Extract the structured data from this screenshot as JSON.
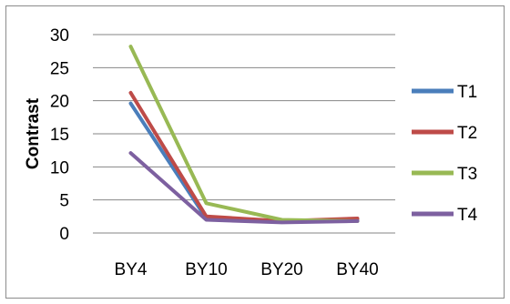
{
  "chart_data": {
    "type": "line",
    "title": "",
    "xlabel": "",
    "ylabel": "Contrast",
    "categories": [
      "BY4",
      "BY10",
      "BY20",
      "BY40"
    ],
    "ylim": [
      0,
      30
    ],
    "yticks": [
      0,
      5,
      10,
      15,
      20,
      25,
      30
    ],
    "grid": "horizontal",
    "legend_position": "right",
    "series": [
      {
        "name": "T1",
        "color": "#4a7ebb",
        "values": [
          19.6,
          2.2,
          1.8,
          1.9
        ]
      },
      {
        "name": "T2",
        "color": "#be4b48",
        "values": [
          21.2,
          2.5,
          1.8,
          2.2
        ]
      },
      {
        "name": "T3",
        "color": "#98b954",
        "values": [
          28.2,
          4.5,
          2.0,
          1.8
        ]
      },
      {
        "name": "T4",
        "color": "#7d60a0",
        "values": [
          12.1,
          2.0,
          1.6,
          1.8
        ]
      }
    ]
  }
}
